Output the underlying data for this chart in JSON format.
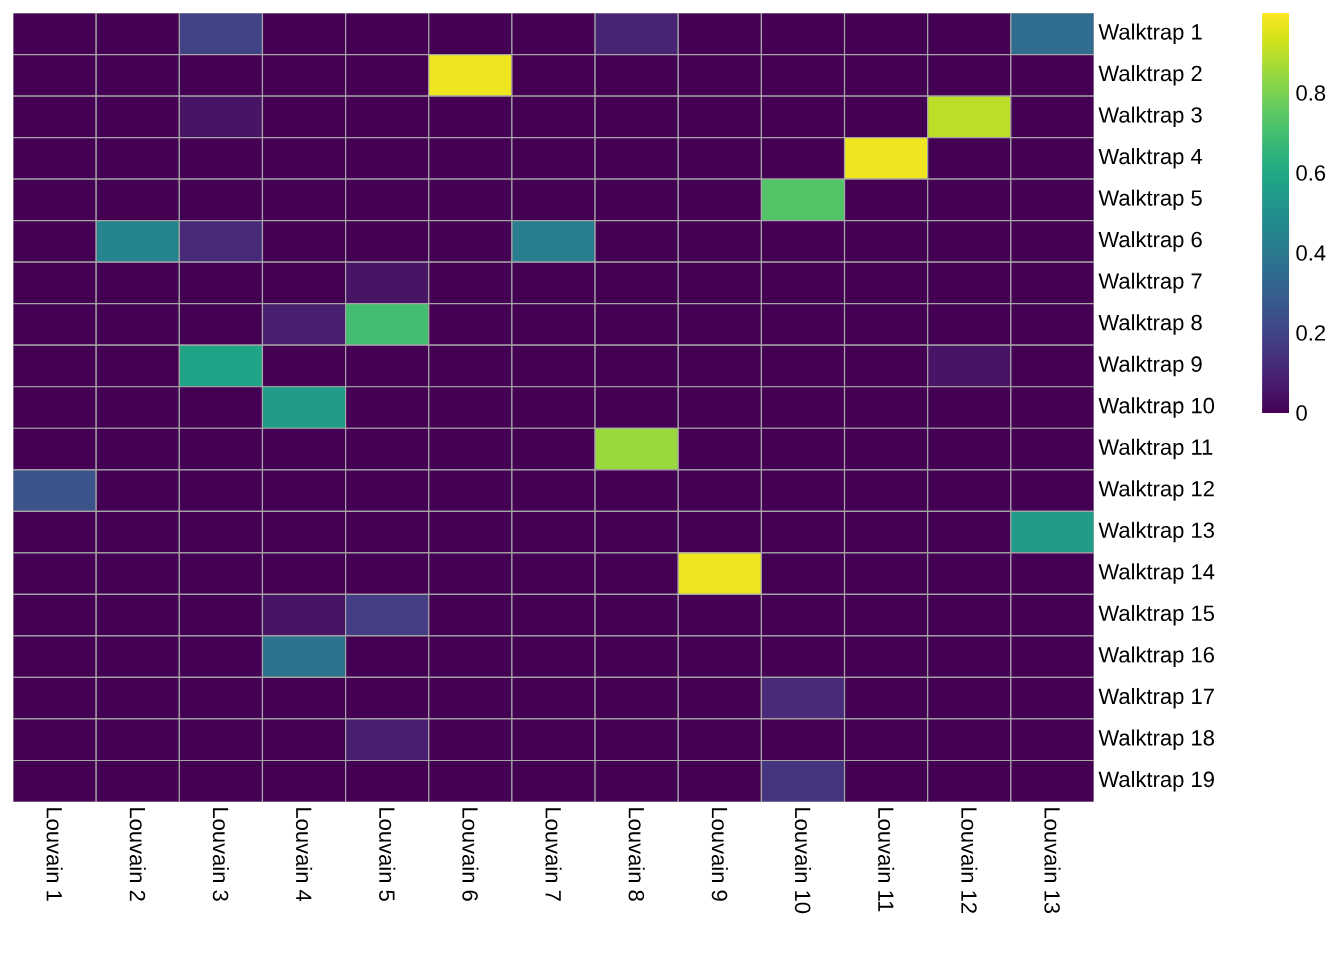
{
  "chart_data": {
    "type": "heatmap",
    "categories": [
      "Louvain 1",
      "Louvain 2",
      "Louvain 3",
      "Louvain 4",
      "Louvain 5",
      "Louvain 6",
      "Louvain 7",
      "Louvain 8",
      "Louvain 9",
      "Louvain 10",
      "Louvain 11",
      "Louvain 12",
      "Louvain 13"
    ],
    "y_categories": [
      "Walktrap 1",
      "Walktrap 2",
      "Walktrap 3",
      "Walktrap 4",
      "Walktrap 5",
      "Walktrap 6",
      "Walktrap 7",
      "Walktrap 8",
      "Walktrap 9",
      "Walktrap 10",
      "Walktrap 11",
      "Walktrap 12",
      "Walktrap 13",
      "Walktrap 14",
      "Walktrap 15",
      "Walktrap 16",
      "Walktrap 17",
      "Walktrap 18",
      "Walktrap 19"
    ],
    "cells": [
      [
        0,
        0,
        0.2,
        0,
        0,
        0,
        0,
        0.1,
        0,
        0,
        0,
        0,
        0.35
      ],
      [
        0,
        0,
        0,
        0,
        0,
        0.98,
        0,
        0,
        0,
        0,
        0,
        0,
        0
      ],
      [
        0,
        0,
        0.05,
        0,
        0,
        0,
        0,
        0,
        0,
        0,
        0,
        0.9,
        0
      ],
      [
        0,
        0,
        0,
        0,
        0,
        0,
        0,
        0,
        0,
        0,
        0.98,
        0,
        0
      ],
      [
        0,
        0,
        0,
        0,
        0,
        0,
        0,
        0,
        0,
        0.73,
        0,
        0,
        0
      ],
      [
        0,
        0.45,
        0.12,
        0,
        0,
        0,
        0.42,
        0,
        0,
        0,
        0,
        0,
        0
      ],
      [
        0,
        0,
        0,
        0,
        0.05,
        0,
        0,
        0,
        0,
        0,
        0,
        0,
        0
      ],
      [
        0,
        0,
        0,
        0.08,
        0.7,
        0,
        0,
        0,
        0,
        0,
        0,
        0,
        0
      ],
      [
        0,
        0,
        0.58,
        0,
        0,
        0,
        0,
        0,
        0,
        0,
        0,
        0.05,
        0
      ],
      [
        0,
        0,
        0,
        0.55,
        0,
        0,
        0,
        0,
        0,
        0,
        0,
        0,
        0
      ],
      [
        0,
        0,
        0,
        0,
        0,
        0,
        0,
        0.85,
        0,
        0,
        0,
        0,
        0
      ],
      [
        0.25,
        0,
        0,
        0,
        0,
        0,
        0,
        0,
        0,
        0,
        0,
        0,
        0
      ],
      [
        0,
        0,
        0,
        0,
        0,
        0,
        0,
        0,
        0,
        0,
        0,
        0,
        0.55
      ],
      [
        0,
        0,
        0,
        0,
        0,
        0,
        0,
        0,
        0.98,
        0,
        0,
        0,
        0
      ],
      [
        0,
        0,
        0,
        0.05,
        0.18,
        0,
        0,
        0,
        0,
        0,
        0,
        0,
        0
      ],
      [
        0,
        0,
        0,
        0.38,
        0,
        0,
        0,
        0,
        0,
        0,
        0,
        0,
        0
      ],
      [
        0,
        0,
        0,
        0,
        0,
        0,
        0,
        0,
        0,
        0.12,
        0,
        0,
        0
      ],
      [
        0,
        0,
        0,
        0,
        0.08,
        0,
        0,
        0,
        0,
        0,
        0,
        0,
        0
      ],
      [
        0,
        0,
        0,
        0,
        0,
        0,
        0,
        0,
        0,
        0.15,
        0,
        0,
        0
      ]
    ],
    "clim": [
      0,
      1
    ],
    "cticks": [
      0,
      0.2,
      0.4,
      0.6,
      0.8
    ]
  }
}
